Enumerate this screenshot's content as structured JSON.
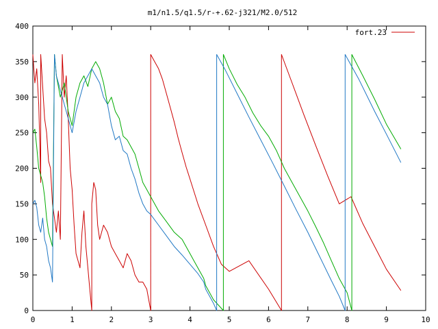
{
  "chart_data": {
    "type": "line",
    "title": "m1/n1.5/q1.5/r-+.62-j321/M2.0/512",
    "xlabel": "",
    "ylabel": "",
    "xlim": [
      0,
      10
    ],
    "ylim": [
      0,
      400
    ],
    "x_ticks": [
      "0",
      "1",
      "2",
      "3",
      "4",
      "5",
      "6",
      "7",
      "8",
      "9",
      "10"
    ],
    "y_ticks": [
      "0",
      "50",
      "100",
      "150",
      "200",
      "250",
      "300",
      "350",
      "400"
    ],
    "grid": false,
    "legend": {
      "position": "top-right",
      "entries": [
        "fort.23"
      ]
    },
    "series": [
      {
        "name": "fort.23",
        "color": "#cc0000",
        "points": [
          [
            0.0,
            360
          ],
          [
            0.05,
            320
          ],
          [
            0.1,
            340
          ],
          [
            0.15,
            290
          ],
          [
            0.18,
            230
          ],
          [
            0.2,
            180
          ],
          [
            0.2,
            360
          ],
          [
            0.3,
            270
          ],
          [
            0.35,
            250
          ],
          [
            0.4,
            210
          ],
          [
            0.45,
            200
          ],
          [
            0.5,
            150
          ],
          [
            0.55,
            130
          ],
          [
            0.6,
            110
          ],
          [
            0.65,
            140
          ],
          [
            0.7,
            100
          ],
          [
            0.75,
            360
          ],
          [
            0.8,
            300
          ],
          [
            0.85,
            330
          ],
          [
            0.9,
            270
          ],
          [
            0.95,
            200
          ],
          [
            1.0,
            170
          ],
          [
            1.05,
            120
          ],
          [
            1.1,
            80
          ],
          [
            1.2,
            60
          ],
          [
            1.25,
            110
          ],
          [
            1.3,
            140
          ],
          [
            1.35,
            90
          ],
          [
            1.4,
            60
          ],
          [
            1.45,
            30
          ],
          [
            1.5,
            0
          ],
          [
            1.5,
            150
          ],
          [
            1.55,
            180
          ],
          [
            1.6,
            170
          ],
          [
            1.65,
            120
          ],
          [
            1.7,
            100
          ],
          [
            1.8,
            120
          ],
          [
            1.9,
            110
          ],
          [
            2.0,
            90
          ],
          [
            2.1,
            80
          ],
          [
            2.2,
            70
          ],
          [
            2.3,
            60
          ],
          [
            2.4,
            80
          ],
          [
            2.5,
            70
          ],
          [
            2.6,
            50
          ],
          [
            2.7,
            40
          ],
          [
            2.8,
            40
          ],
          [
            2.9,
            30
          ],
          [
            3.0,
            0
          ],
          [
            3.0,
            360
          ],
          [
            3.1,
            350
          ],
          [
            3.2,
            340
          ],
          [
            3.3,
            325
          ],
          [
            3.4,
            305
          ],
          [
            3.5,
            285
          ],
          [
            3.6,
            265
          ],
          [
            3.7,
            242
          ],
          [
            3.8,
            222
          ],
          [
            3.9,
            202
          ],
          [
            4.0,
            185
          ],
          [
            4.2,
            150
          ],
          [
            4.4,
            120
          ],
          [
            4.6,
            90
          ],
          [
            4.8,
            65
          ],
          [
            5.0,
            55
          ],
          [
            5.5,
            70
          ],
          [
            6.0,
            30
          ],
          [
            6.33,
            0
          ],
          [
            6.33,
            360
          ],
          [
            6.6,
            320
          ],
          [
            6.9,
            275
          ],
          [
            7.2,
            232
          ],
          [
            7.5,
            190
          ],
          [
            7.8,
            150
          ],
          [
            8.1,
            160
          ],
          [
            8.4,
            122
          ],
          [
            8.7,
            90
          ],
          [
            9.0,
            58
          ],
          [
            9.37,
            28
          ]
        ]
      },
      {
        "name": "",
        "color": "#00aa00",
        "points": [
          [
            0.0,
            250
          ],
          [
            0.05,
            255
          ],
          [
            0.1,
            230
          ],
          [
            0.15,
            200
          ],
          [
            0.2,
            190
          ],
          [
            0.25,
            180
          ],
          [
            0.3,
            160
          ],
          [
            0.35,
            130
          ],
          [
            0.4,
            110
          ],
          [
            0.45,
            100
          ],
          [
            0.5,
            90
          ],
          [
            0.55,
            360
          ],
          [
            0.6,
            330
          ],
          [
            0.7,
            300
          ],
          [
            0.8,
            320
          ],
          [
            0.9,
            280
          ],
          [
            1.0,
            260
          ],
          [
            1.1,
            300
          ],
          [
            1.2,
            320
          ],
          [
            1.3,
            330
          ],
          [
            1.4,
            315
          ],
          [
            1.5,
            340
          ],
          [
            1.6,
            350
          ],
          [
            1.7,
            340
          ],
          [
            1.8,
            320
          ],
          [
            1.9,
            290
          ],
          [
            2.0,
            300
          ],
          [
            2.1,
            280
          ],
          [
            2.2,
            270
          ],
          [
            2.3,
            245
          ],
          [
            2.4,
            240
          ],
          [
            2.5,
            230
          ],
          [
            2.6,
            220
          ],
          [
            2.7,
            200
          ],
          [
            2.8,
            180
          ],
          [
            2.9,
            170
          ],
          [
            3.0,
            160
          ],
          [
            3.2,
            140
          ],
          [
            3.4,
            125
          ],
          [
            3.6,
            110
          ],
          [
            3.8,
            100
          ],
          [
            4.0,
            80
          ],
          [
            4.2,
            60
          ],
          [
            4.35,
            45
          ],
          [
            4.4,
            35
          ],
          [
            4.6,
            15
          ],
          [
            4.85,
            0
          ],
          [
            4.85,
            360
          ],
          [
            5.0,
            340
          ],
          [
            5.2,
            318
          ],
          [
            5.4,
            300
          ],
          [
            5.6,
            278
          ],
          [
            5.8,
            260
          ],
          [
            6.0,
            245
          ],
          [
            6.2,
            225
          ],
          [
            6.4,
            200
          ],
          [
            6.6,
            180
          ],
          [
            6.8,
            160
          ],
          [
            7.0,
            140
          ],
          [
            7.2,
            118
          ],
          [
            7.4,
            95
          ],
          [
            7.6,
            70
          ],
          [
            7.8,
            45
          ],
          [
            8.0,
            25
          ],
          [
            8.12,
            0
          ],
          [
            8.12,
            360
          ],
          [
            8.4,
            330
          ],
          [
            8.7,
            297
          ],
          [
            9.0,
            262
          ],
          [
            9.37,
            227
          ]
        ]
      },
      {
        "name": "",
        "color": "#1f77c4",
        "points": [
          [
            0.0,
            150
          ],
          [
            0.05,
            155
          ],
          [
            0.1,
            145
          ],
          [
            0.15,
            120
          ],
          [
            0.2,
            110
          ],
          [
            0.25,
            130
          ],
          [
            0.3,
            100
          ],
          [
            0.35,
            90
          ],
          [
            0.4,
            70
          ],
          [
            0.45,
            60
          ],
          [
            0.5,
            40
          ],
          [
            0.55,
            360
          ],
          [
            0.6,
            330
          ],
          [
            0.7,
            310
          ],
          [
            0.8,
            290
          ],
          [
            0.9,
            270
          ],
          [
            1.0,
            250
          ],
          [
            1.1,
            280
          ],
          [
            1.2,
            300
          ],
          [
            1.3,
            320
          ],
          [
            1.4,
            330
          ],
          [
            1.5,
            340
          ],
          [
            1.6,
            330
          ],
          [
            1.7,
            320
          ],
          [
            1.8,
            300
          ],
          [
            1.9,
            290
          ],
          [
            2.0,
            260
          ],
          [
            2.1,
            240
          ],
          [
            2.2,
            245
          ],
          [
            2.3,
            225
          ],
          [
            2.4,
            220
          ],
          [
            2.5,
            200
          ],
          [
            2.6,
            185
          ],
          [
            2.7,
            165
          ],
          [
            2.8,
            150
          ],
          [
            2.9,
            140
          ],
          [
            3.0,
            135
          ],
          [
            3.2,
            120
          ],
          [
            3.4,
            105
          ],
          [
            3.6,
            90
          ],
          [
            3.8,
            78
          ],
          [
            4.0,
            65
          ],
          [
            4.2,
            52
          ],
          [
            4.35,
            40
          ],
          [
            4.4,
            30
          ],
          [
            4.5,
            20
          ],
          [
            4.6,
            10
          ],
          [
            4.68,
            0
          ],
          [
            4.68,
            360
          ],
          [
            4.9,
            338
          ],
          [
            5.2,
            305
          ],
          [
            5.5,
            272
          ],
          [
            5.8,
            240
          ],
          [
            6.1,
            208
          ],
          [
            6.4,
            175
          ],
          [
            6.7,
            142
          ],
          [
            7.0,
            110
          ],
          [
            7.3,
            76
          ],
          [
            7.6,
            42
          ],
          [
            7.8,
            20
          ],
          [
            7.95,
            0
          ],
          [
            7.95,
            360
          ],
          [
            8.3,
            325
          ],
          [
            8.7,
            280
          ],
          [
            9.0,
            248
          ],
          [
            9.37,
            208
          ]
        ]
      }
    ]
  }
}
